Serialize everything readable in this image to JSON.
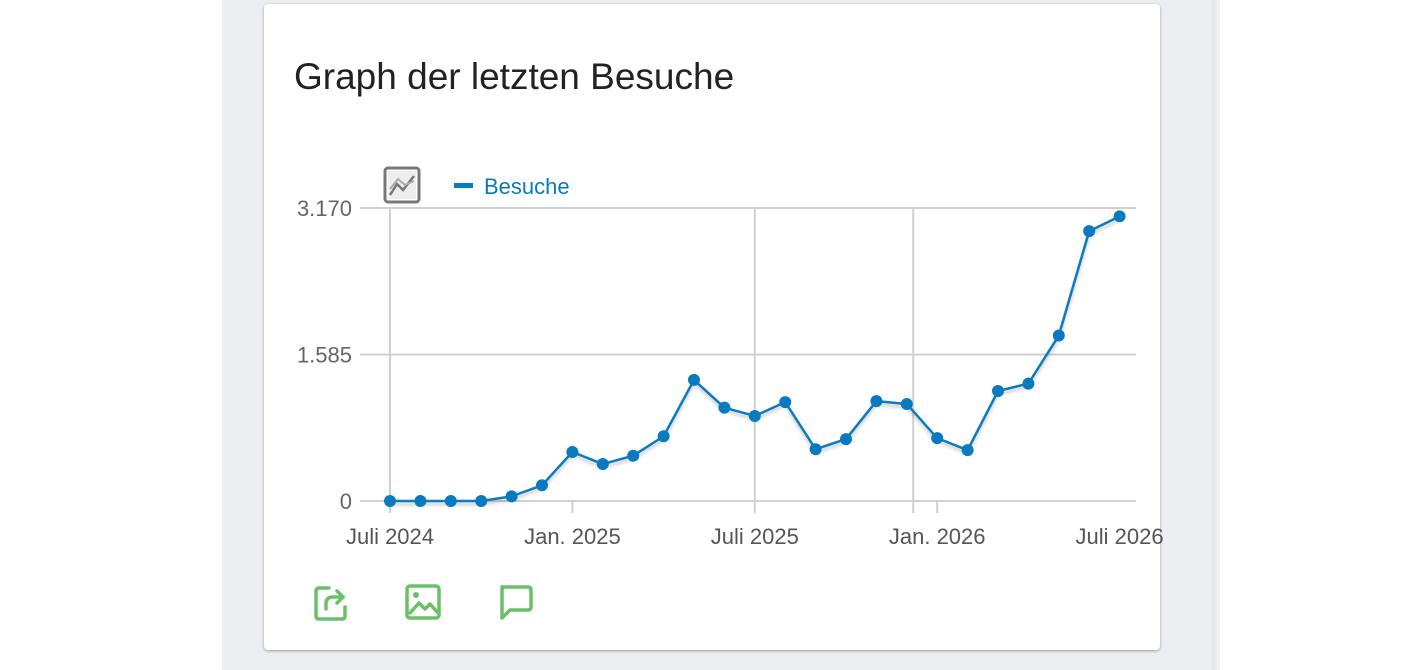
{
  "card": {
    "title": "Graph der letzten Besuche"
  },
  "icons": {
    "chart_type": "line-chart-icon",
    "export": "share-icon",
    "image": "image-icon",
    "annotation": "comment-icon"
  },
  "colors": {
    "series": "#0a7abf",
    "grid": "#d0d0d0",
    "footer_icons": "#6cbf6a",
    "column_bg": "#eceef1"
  },
  "chart_data": {
    "type": "line",
    "legend_position": "top-left",
    "grid": true,
    "ylim": [
      0,
      3170
    ],
    "y_ticks": [
      {
        "value": 0,
        "label": "0"
      },
      {
        "value": 1585,
        "label": "1.585"
      },
      {
        "value": 3170,
        "label": "3.170"
      }
    ],
    "x_ticks": [
      {
        "date": "2024-07",
        "label": "Juli 2024"
      },
      {
        "date": "2025-01",
        "label": "Jan. 2025"
      },
      {
        "date": "2025-07",
        "label": "Juli 2025"
      },
      {
        "date": "2026-01",
        "label": "Jan. 2026"
      },
      {
        "date": "2026-07",
        "label": "Juli 2026"
      }
    ],
    "series": [
      {
        "name": "Besuche",
        "x": [
          "2024-07",
          "2024-08",
          "2024-09",
          "2024-10",
          "2024-11",
          "2024-12",
          "2025-01",
          "2025-02",
          "2025-03",
          "2025-04",
          "2025-05",
          "2025-06",
          "2025-07",
          "2025-08",
          "2025-09",
          "2025-10",
          "2025-11",
          "2025-12",
          "2026-01",
          "2026-02",
          "2026-03",
          "2026-04",
          "2026-05",
          "2026-06",
          "2026-07"
        ],
        "values": [
          0,
          0,
          0,
          0,
          50,
          170,
          530,
          400,
          490,
          700,
          1310,
          1010,
          920,
          1070,
          560,
          670,
          1080,
          1050,
          680,
          550,
          1190,
          1270,
          1790,
          2920,
          3080
        ]
      }
    ]
  }
}
